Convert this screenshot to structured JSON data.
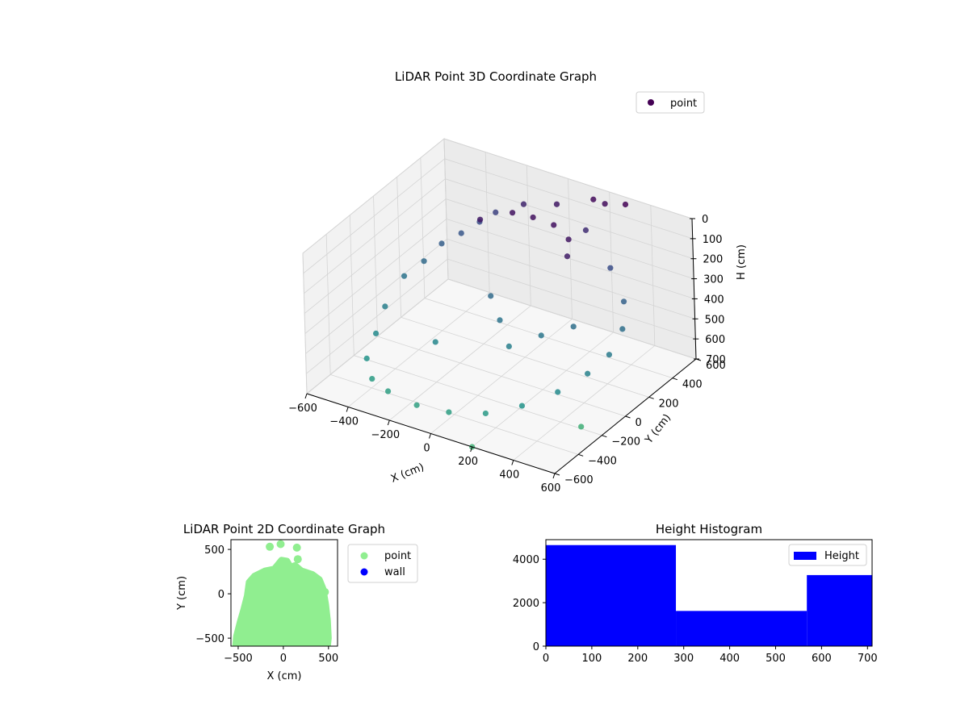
{
  "chart_data": [
    {
      "type": "scatter",
      "title": "LiDAR Point 3D Coordinate Graph",
      "xlabel": "X (cm)",
      "ylabel": "Y (cm)",
      "zlabel": "H (cm)",
      "xlim": [
        -600,
        600
      ],
      "ylim": [
        -600,
        600
      ],
      "zlim": [
        700,
        0
      ],
      "x_ticks": [
        -600,
        -400,
        -200,
        0,
        200,
        400,
        600
      ],
      "x_tick_labels": [
        "−600",
        "−400",
        "−200",
        "0",
        "200",
        "400",
        "600"
      ],
      "y_ticks": [
        -600,
        -400,
        -200,
        0,
        200,
        400,
        600
      ],
      "y_tick_labels": [
        "−600",
        "−400",
        "−200",
        "0",
        "200",
        "400",
        "600"
      ],
      "z_ticks": [
        0,
        100,
        200,
        300,
        400,
        500,
        600,
        700
      ],
      "z_tick_labels": [
        "0",
        "100",
        "200",
        "300",
        "400",
        "500",
        "600",
        "700"
      ],
      "legend": {
        "placement": "top-right",
        "entries": [
          {
            "label": "point",
            "color": "#440154"
          }
        ]
      },
      "colormap": "viridis",
      "grid": true,
      "series": [
        {
          "name": "point",
          "points": [
            {
              "x": -520,
              "y": 100,
              "h": 420
            },
            {
              "x": -480,
              "y": 200,
              "h": 380
            },
            {
              "x": -450,
              "y": 300,
              "h": 330
            },
            {
              "x": -400,
              "y": 380,
              "h": 300
            },
            {
              "x": -350,
              "y": 450,
              "h": 260
            },
            {
              "x": -300,
              "y": 500,
              "h": 220
            },
            {
              "x": -500,
              "y": -100,
              "h": 470
            },
            {
              "x": -460,
              "y": -250,
              "h": 520
            },
            {
              "x": -420,
              "y": -400,
              "h": 560
            },
            {
              "x": -350,
              "y": -480,
              "h": 600
            },
            {
              "x": -250,
              "y": -520,
              "h": 610
            },
            {
              "x": -100,
              "y": -540,
              "h": 620
            },
            {
              "x": 50,
              "y": -530,
              "h": 610
            },
            {
              "x": 200,
              "y": -480,
              "h": 590
            },
            {
              "x": 320,
              "y": -380,
              "h": 560
            },
            {
              "x": 420,
              "y": -250,
              "h": 520
            },
            {
              "x": 480,
              "y": -100,
              "h": 480
            },
            {
              "x": 500,
              "y": 50,
              "h": 450
            },
            {
              "x": 480,
              "y": 200,
              "h": 400
            },
            {
              "x": 420,
              "y": 320,
              "h": 340
            },
            {
              "x": 300,
              "y": 420,
              "h": 260
            },
            {
              "x": 150,
              "y": 480,
              "h": 150
            },
            {
              "x": 0,
              "y": 500,
              "h": 80
            },
            {
              "x": -150,
              "y": 480,
              "h": 120
            },
            {
              "x": -100,
              "y": 300,
              "h": 60
            },
            {
              "x": 0,
              "y": 300,
              "h": 50
            },
            {
              "x": 100,
              "y": 300,
              "h": 55
            },
            {
              "x": 200,
              "y": 250,
              "h": 70
            },
            {
              "x": 250,
              "y": 150,
              "h": 90
            },
            {
              "x": -200,
              "y": 200,
              "h": 80
            },
            {
              "x": 0,
              "y": 0,
              "h": 420
            },
            {
              "x": 100,
              "y": -100,
              "h": 470
            },
            {
              "x": -100,
              "y": 100,
              "h": 380
            },
            {
              "x": 200,
              "y": 0,
              "h": 430
            },
            {
              "x": -200,
              "y": -200,
              "h": 500
            },
            {
              "x": 300,
              "y": 100,
              "h": 400
            },
            {
              "x": 150,
              "y": 550,
              "h": 30
            },
            {
              "x": 200,
              "y": 560,
              "h": 40
            },
            {
              "x": 300,
              "y": 560,
              "h": 10
            },
            {
              "x": 500,
              "y": -200,
              "h": 690
            },
            {
              "x": 200,
              "y": -600,
              "h": 700
            }
          ]
        }
      ]
    },
    {
      "type": "scatter",
      "title": "LiDAR Point 2D Coordinate Graph",
      "xlabel": "X (cm)",
      "ylabel": "Y (cm)",
      "xlim": [
        -580,
        600
      ],
      "ylim": [
        -590,
        610
      ],
      "x_ticks": [
        -500,
        0,
        500
      ],
      "x_tick_labels": [
        "−500",
        "0",
        "500"
      ],
      "y_ticks": [
        -500,
        0,
        500
      ],
      "y_tick_labels": [
        "−500",
        "0",
        "500"
      ],
      "legend": {
        "placement": "outside-right",
        "entries": [
          {
            "label": "point",
            "color": "#90ee90"
          },
          {
            "label": "wall",
            "color": "#0000ff"
          }
        ]
      },
      "point_cloud_outline": [
        [
          -530,
          -590
        ],
        [
          -520,
          -480
        ],
        [
          -480,
          -320
        ],
        [
          -440,
          -180
        ],
        [
          -400,
          -20
        ],
        [
          -380,
          130
        ],
        [
          -320,
          200
        ],
        [
          -200,
          260
        ],
        [
          -100,
          280
        ],
        [
          -20,
          380
        ],
        [
          40,
          370
        ],
        [
          80,
          300
        ],
        [
          130,
          320
        ],
        [
          200,
          260
        ],
        [
          320,
          220
        ],
        [
          400,
          160
        ],
        [
          440,
          60
        ],
        [
          470,
          -120
        ],
        [
          490,
          -300
        ],
        [
          500,
          -500
        ],
        [
          490,
          -590
        ]
      ],
      "series": [
        {
          "name": "point",
          "color": "#90ee90",
          "points": [
            [
              -150,
              530
            ],
            [
              -30,
              560
            ],
            [
              150,
              520
            ],
            [
              160,
              390
            ],
            [
              460,
              20
            ]
          ]
        },
        {
          "name": "wall",
          "color": "#0000ff",
          "points": []
        }
      ]
    },
    {
      "type": "bar",
      "title": "Height Histogram",
      "legend": {
        "placement": "top-right",
        "entries": [
          {
            "label": "Height",
            "color": "#0000ff"
          }
        ]
      },
      "xlim": [
        0,
        710
      ],
      "ylim": [
        0,
        4900
      ],
      "x_ticks": [
        0,
        100,
        200,
        300,
        400,
        500,
        600,
        700
      ],
      "x_tick_labels": [
        "0",
        "100",
        "200",
        "300",
        "400",
        "500",
        "600",
        "700"
      ],
      "y_ticks": [
        0,
        2000,
        4000
      ],
      "y_tick_labels": [
        "0",
        "2000",
        "4000"
      ],
      "bins": [
        {
          "x0": 0,
          "x1": 283,
          "count": 4650
        },
        {
          "x0": 283,
          "x1": 568,
          "count": 1620
        },
        {
          "x0": 568,
          "x1": 710,
          "count": 3270
        }
      ],
      "color": "#0000ff"
    }
  ]
}
